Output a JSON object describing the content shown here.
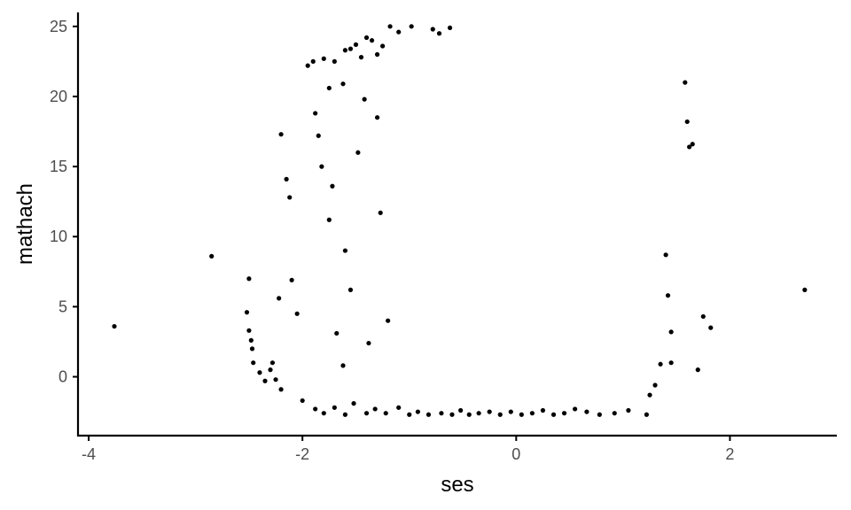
{
  "chart_data": {
    "type": "scatter",
    "title": "",
    "xlabel": "ses",
    "ylabel": "mathach",
    "xlim": [
      -4.1,
      3.0
    ],
    "ylim": [
      -4.2,
      26.0
    ],
    "x_ticks": [
      -4,
      -2,
      0,
      2
    ],
    "x_tick_labels": [
      "-4",
      "-2",
      "0",
      "2"
    ],
    "y_ticks": [
      0,
      5,
      10,
      15,
      20,
      25
    ],
    "y_tick_labels": [
      "0",
      "5",
      "10",
      "15",
      "20",
      "25"
    ],
    "grid": false,
    "legend": "none",
    "point_color": "#000000",
    "axis_color": "#000000",
    "points": [
      [
        -3.76,
        3.6
      ],
      [
        -2.85,
        8.6
      ],
      [
        2.7,
        6.2
      ],
      [
        1.82,
        3.5
      ],
      [
        1.75,
        4.3
      ],
      [
        1.7,
        0.5
      ],
      [
        1.65,
        16.6
      ],
      [
        1.6,
        18.2
      ],
      [
        1.58,
        21.0
      ],
      [
        1.62,
        16.4
      ],
      [
        1.45,
        3.2
      ],
      [
        1.45,
        1.0
      ],
      [
        1.42,
        5.8
      ],
      [
        1.4,
        8.7
      ],
      [
        1.35,
        0.9
      ],
      [
        1.3,
        -0.6
      ],
      [
        1.25,
        -1.3
      ],
      [
        1.22,
        -2.7
      ],
      [
        -2.5,
        7.0
      ],
      [
        -2.52,
        4.6
      ],
      [
        -2.5,
        3.3
      ],
      [
        -2.48,
        2.6
      ],
      [
        -2.47,
        2.0
      ],
      [
        -2.46,
        1.0
      ],
      [
        -2.4,
        0.3
      ],
      [
        -2.35,
        -0.3
      ],
      [
        -2.3,
        0.5
      ],
      [
        -2.28,
        1.0
      ],
      [
        -2.25,
        -0.2
      ],
      [
        -2.2,
        -0.9
      ],
      [
        -2.22,
        5.6
      ],
      [
        -2.2,
        17.3
      ],
      [
        -2.15,
        14.1
      ],
      [
        -2.12,
        12.8
      ],
      [
        -2.1,
        6.9
      ],
      [
        -2.05,
        4.5
      ],
      [
        -2.0,
        -1.7
      ],
      [
        -1.95,
        22.2
      ],
      [
        -1.9,
        22.5
      ],
      [
        -1.88,
        18.8
      ],
      [
        -1.85,
        17.2
      ],
      [
        -1.82,
        15.0
      ],
      [
        -1.8,
        22.7
      ],
      [
        -1.75,
        20.6
      ],
      [
        -1.7,
        22.5
      ],
      [
        -1.62,
        20.9
      ],
      [
        -1.6,
        23.3
      ],
      [
        -1.55,
        23.4
      ],
      [
        -1.5,
        23.7
      ],
      [
        -1.45,
        22.8
      ],
      [
        -1.4,
        24.2
      ],
      [
        -1.35,
        24.0
      ],
      [
        -1.3,
        23.0
      ],
      [
        -1.25,
        23.6
      ],
      [
        -1.18,
        25.0
      ],
      [
        -1.1,
        24.6
      ],
      [
        -0.98,
        25.0
      ],
      [
        -0.78,
        24.8
      ],
      [
        -0.72,
        24.5
      ],
      [
        -0.62,
        24.9
      ],
      [
        -1.88,
        -2.3
      ],
      [
        -1.8,
        -2.6
      ],
      [
        -1.7,
        -2.2
      ],
      [
        -1.6,
        -2.7
      ],
      [
        -1.52,
        -1.9
      ],
      [
        -1.4,
        -2.6
      ],
      [
        -1.32,
        -2.3
      ],
      [
        -1.22,
        -2.6
      ],
      [
        -1.1,
        -2.2
      ],
      [
        -1.0,
        -2.7
      ],
      [
        -0.92,
        -2.5
      ],
      [
        -0.82,
        -2.7
      ],
      [
        -0.7,
        -2.6
      ],
      [
        -0.6,
        -2.7
      ],
      [
        -0.52,
        -2.4
      ],
      [
        -0.44,
        -2.7
      ],
      [
        -0.35,
        -2.6
      ],
      [
        -0.25,
        -2.5
      ],
      [
        -0.15,
        -2.7
      ],
      [
        -0.05,
        -2.5
      ],
      [
        0.05,
        -2.7
      ],
      [
        0.15,
        -2.6
      ],
      [
        0.25,
        -2.4
      ],
      [
        0.35,
        -2.7
      ],
      [
        0.45,
        -2.6
      ],
      [
        0.55,
        -2.3
      ],
      [
        0.66,
        -2.5
      ],
      [
        0.78,
        -2.7
      ],
      [
        0.92,
        -2.6
      ],
      [
        1.05,
        -2.4
      ],
      [
        -1.6,
        9.0
      ],
      [
        -1.55,
        6.2
      ],
      [
        -1.68,
        3.1
      ],
      [
        -1.62,
        0.8
      ],
      [
        -1.75,
        11.2
      ],
      [
        -1.72,
        13.6
      ],
      [
        -1.48,
        16.0
      ],
      [
        -1.42,
        19.8
      ],
      [
        -1.38,
        2.4
      ],
      [
        -1.3,
        18.5
      ],
      [
        -1.27,
        11.7
      ],
      [
        -1.2,
        4.0
      ]
    ]
  }
}
